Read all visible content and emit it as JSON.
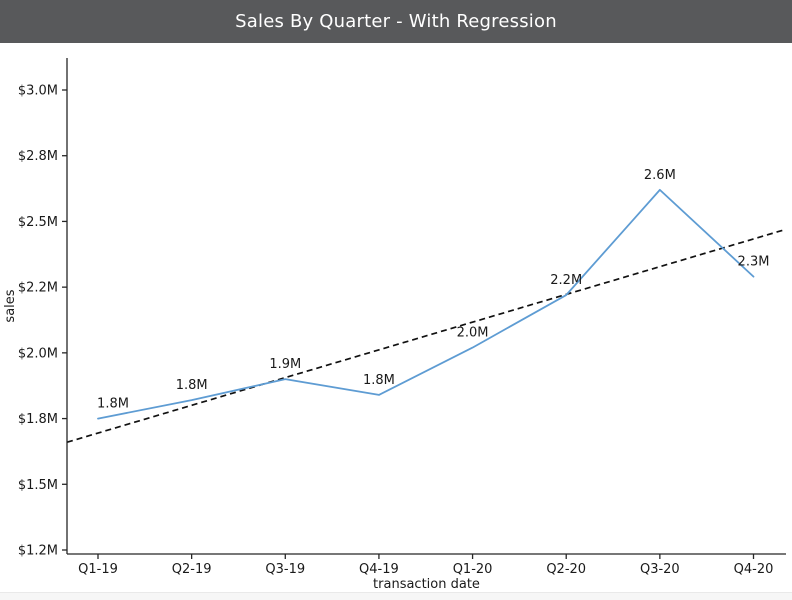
{
  "window": {
    "title": "Sales By Quarter - With Regression",
    "header_bg": "#58595b",
    "title_color": "#ffffff"
  },
  "chart_data": {
    "type": "line",
    "title": "Sales By Quarter - With Regression",
    "xlabel": "transaction date",
    "ylabel": "sales",
    "categories": [
      "Q1-19",
      "Q2-19",
      "Q3-19",
      "Q4-19",
      "Q1-20",
      "Q2-20",
      "Q3-20",
      "Q4-20"
    ],
    "series": [
      {
        "name": "sales",
        "style": "solid",
        "color": "#5e9cd3",
        "values": [
          1.75,
          1.82,
          1.9,
          1.84,
          2.02,
          2.22,
          2.62,
          2.29
        ],
        "point_labels": [
          "1.8M",
          "1.8M",
          "1.9M",
          "1.8M",
          "2.0M",
          "2.2M",
          "2.6M",
          "2.3M"
        ]
      },
      {
        "name": "regression",
        "style": "dashed",
        "color": "#111111",
        "edge_values": [
          1.66,
          2.47
        ]
      }
    ],
    "y_ticks": {
      "values": [
        3.0,
        2.75,
        2.5,
        2.25,
        2.0,
        1.75,
        1.5,
        1.25
      ],
      "labels": [
        "$3.0M",
        "$2.8M",
        "$2.5M",
        "$2.2M",
        "$2.0M",
        "$1.8M",
        "$1.5M",
        "$1.2M"
      ]
    },
    "ylim": [
      1.235,
      3.12
    ],
    "grid": false,
    "legend": null,
    "axis_color": "#262626",
    "text_color": "#1a1a1a"
  }
}
